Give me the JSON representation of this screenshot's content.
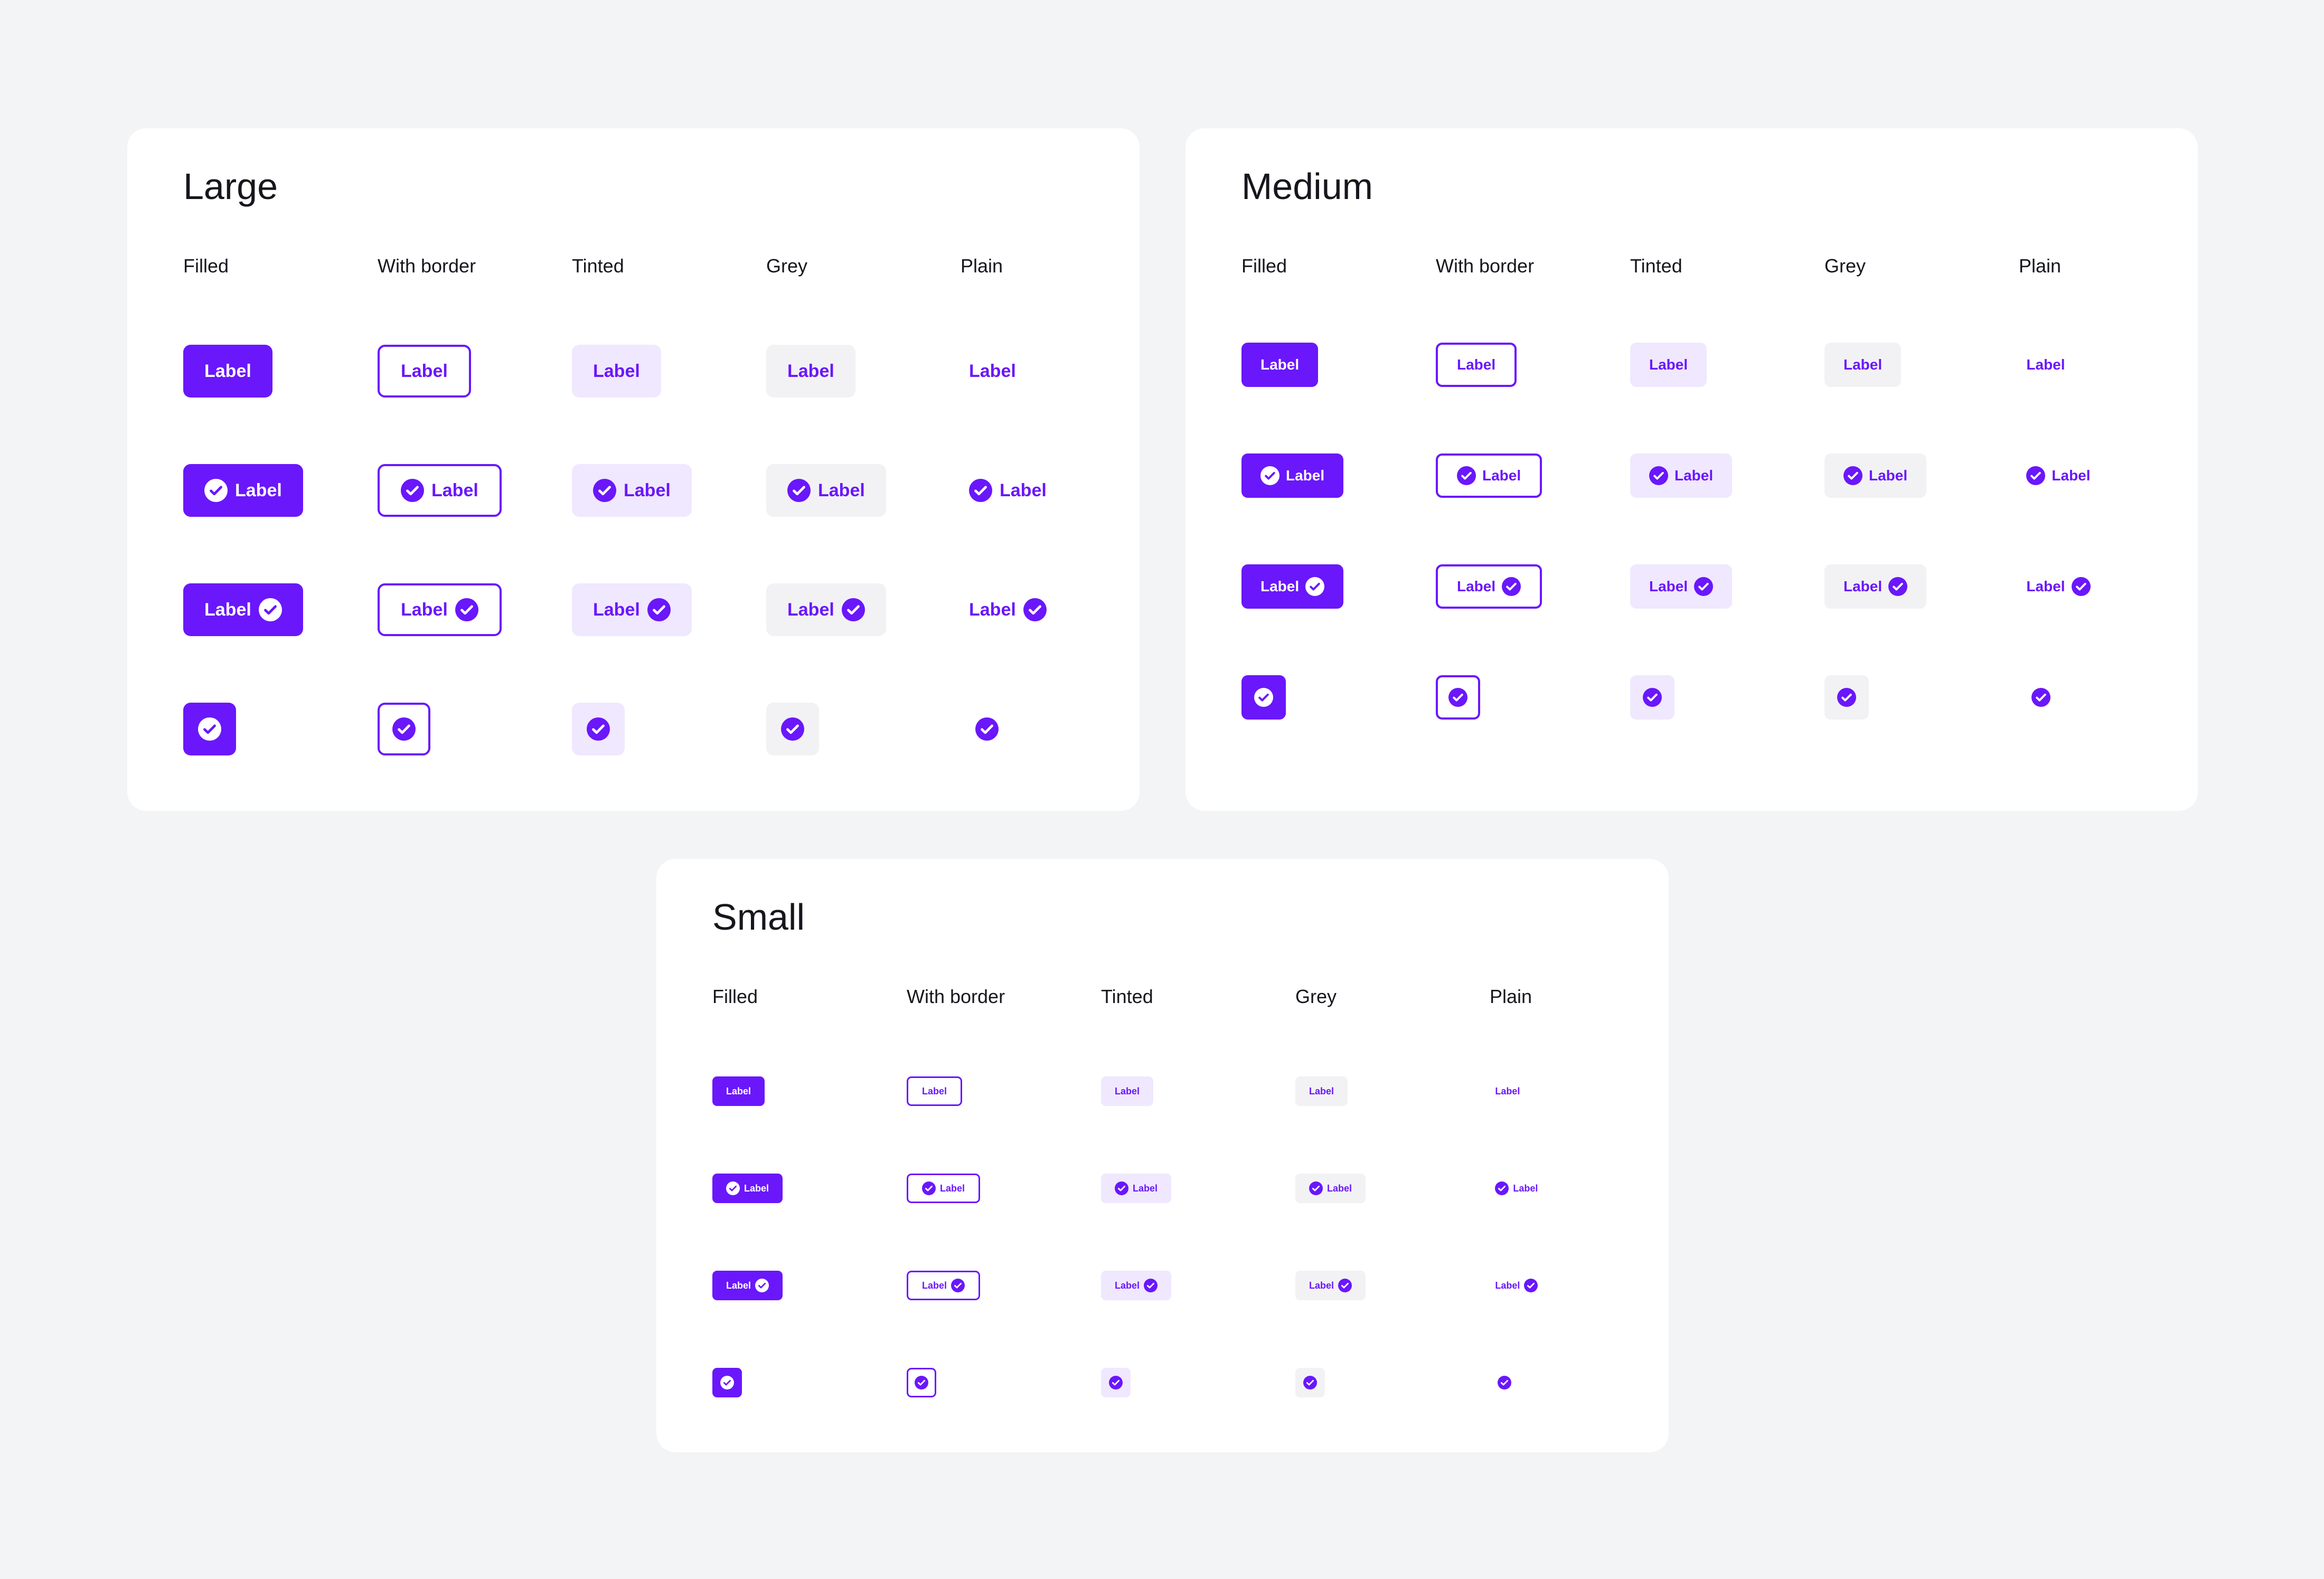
{
  "colors": {
    "background": "#f3f4f6",
    "panel": "#ffffff",
    "accent": "#6a17fb",
    "tinted": "#f0e8fe",
    "grey": "#f2f2f4",
    "text": "#16161d"
  },
  "icon": "check-circle-icon",
  "panels": [
    {
      "id": "large",
      "title": "Large",
      "columns": [
        "Filled",
        "With border",
        "Tinted",
        "Grey",
        "Plain"
      ],
      "rows": [
        {
          "kind": "label-only",
          "label": "Label"
        },
        {
          "kind": "icon-leading",
          "label": "Label"
        },
        {
          "kind": "icon-trailing",
          "label": "Label"
        },
        {
          "kind": "icon-only",
          "label": ""
        }
      ]
    },
    {
      "id": "medium",
      "title": "Medium",
      "columns": [
        "Filled",
        "With border",
        "Tinted",
        "Grey",
        "Plain"
      ],
      "rows": [
        {
          "kind": "label-only",
          "label": "Label"
        },
        {
          "kind": "icon-leading",
          "label": "Label"
        },
        {
          "kind": "icon-trailing",
          "label": "Label"
        },
        {
          "kind": "icon-only",
          "label": ""
        }
      ]
    },
    {
      "id": "small",
      "title": "Small",
      "columns": [
        "Filled",
        "With border",
        "Tinted",
        "Grey",
        "Plain"
      ],
      "rows": [
        {
          "kind": "label-only",
          "label": "Label"
        },
        {
          "kind": "icon-leading",
          "label": "Label"
        },
        {
          "kind": "icon-trailing",
          "label": "Label"
        },
        {
          "kind": "icon-only",
          "label": ""
        }
      ]
    }
  ]
}
